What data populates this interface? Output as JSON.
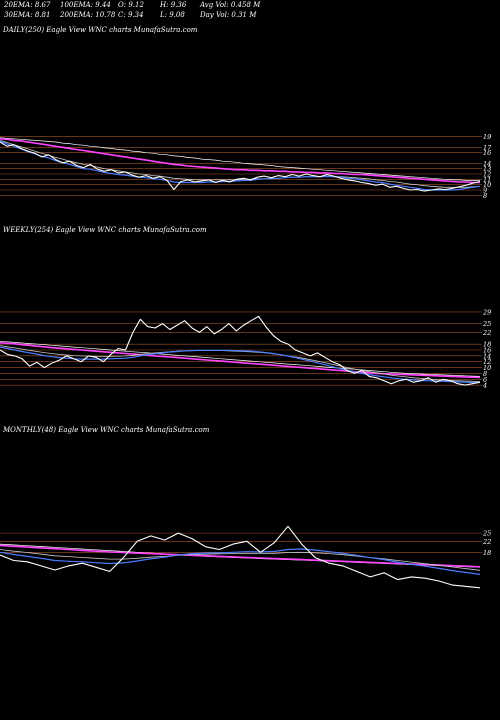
{
  "header": {
    "row1": [
      {
        "key": "ema20",
        "text": "20EMA: 8.67"
      },
      {
        "key": "ema100",
        "text": "100EMA: 9.44"
      },
      {
        "key": "open",
        "text": "O: 9.12"
      },
      {
        "key": "high",
        "text": "H: 9.36"
      },
      {
        "key": "avgvol",
        "text": "Avg Vol: 0.458 M"
      }
    ],
    "row2": [
      {
        "key": "ema30",
        "text": "30EMA: 8.81"
      },
      {
        "key": "ema200",
        "text": "200EMA: 10.78"
      },
      {
        "key": "close",
        "text": "C: 9.34"
      },
      {
        "key": "low",
        "text": "L: 9.08"
      },
      {
        "key": "dayvol",
        "text": "Day Vol: 0.31 M"
      }
    ]
  },
  "panels": {
    "daily": {
      "label": "DAILY(250) Eagle   View  WNC charts MunafaSutra.com"
    },
    "weekly": {
      "label": "WEEKLY(254) Eagle   View  WNC charts MunafaSutra.com"
    },
    "monthly": {
      "label": "MONTHLY(48) Eagle   View  WNC charts MunafaSutra.com"
    }
  },
  "colors": {
    "background": "#000000",
    "price": "#ffffff",
    "ema20": "#4a7bff",
    "ema30": "#c8c8c8",
    "ema100": "#ff44ff",
    "ema200": "#ffffff",
    "grid": "#a0522d",
    "text": "#ffffff"
  },
  "chart_data": [
    {
      "type": "line",
      "id": "daily",
      "title": "DAILY(250) Eagle   View  WNC charts MunafaSutra.com",
      "ylim": [
        6,
        19.5
      ],
      "y_ticks": [
        19,
        17,
        16,
        14,
        13,
        12,
        11,
        10,
        9,
        8
      ],
      "y_tick_labels": [
        "19",
        "17",
        "16",
        "14",
        "13",
        "12",
        "11",
        "10",
        "9",
        "8"
      ],
      "series": [
        {
          "key": "price",
          "values": [
            18.0,
            17.2,
            17.5,
            16.8,
            16.3,
            15.9,
            15.2,
            15.6,
            14.7,
            14.1,
            14.4,
            13.6,
            13.2,
            13.8,
            12.9,
            12.5,
            12.8,
            12.2,
            12.4,
            11.8,
            11.4,
            11.7,
            11.2,
            11.5,
            10.8,
            9.1,
            10.6,
            10.9,
            10.5,
            10.7,
            10.9,
            10.4,
            10.8,
            10.5,
            11.0,
            11.2,
            10.9,
            11.4,
            11.6,
            11.3,
            11.7,
            11.5,
            11.9,
            11.6,
            12.0,
            11.7,
            11.5,
            11.9,
            11.6,
            11.2,
            10.9,
            10.7,
            10.4,
            10.2,
            9.9,
            10.1,
            9.5,
            9.7,
            9.3,
            9.0,
            9.1,
            8.8,
            9.0,
            9.2,
            9.1,
            9.3,
            9.6,
            9.9,
            10.3,
            10.6
          ]
        },
        {
          "key": "ema20",
          "values": [
            18.2,
            17.6,
            17.2,
            16.7,
            16.2,
            15.8,
            15.3,
            15.0,
            14.5,
            14.1,
            13.8,
            13.4,
            13.0,
            12.9,
            12.6,
            12.3,
            12.1,
            11.9,
            11.8,
            11.6,
            11.4,
            11.3,
            11.1,
            11.0,
            10.8,
            10.5,
            10.4,
            10.4,
            10.4,
            10.4,
            10.5,
            10.5,
            10.6,
            10.6,
            10.7,
            10.8,
            10.8,
            11.0,
            11.1,
            11.1,
            11.2,
            11.3,
            11.4,
            11.4,
            11.5,
            11.5,
            11.5,
            11.6,
            11.5,
            11.4,
            11.2,
            11.1,
            10.9,
            10.7,
            10.5,
            10.4,
            10.1,
            9.9,
            9.7,
            9.5,
            9.3,
            9.1,
            9.0,
            9.0,
            9.0,
            9.0,
            9.1,
            9.3,
            9.5,
            9.7
          ]
        },
        {
          "key": "ema30",
          "values": [
            18.3,
            17.9,
            17.5,
            17.1,
            16.7,
            16.3,
            15.9,
            15.5,
            15.1,
            14.8,
            14.4,
            14.1,
            13.8,
            13.6,
            13.3,
            13.0,
            12.8,
            12.6,
            12.4,
            12.2,
            12.0,
            11.9,
            11.7,
            11.6,
            11.4,
            11.2,
            11.1,
            11.0,
            10.9,
            10.9,
            10.9,
            10.9,
            10.9,
            10.9,
            10.9,
            11.0,
            11.0,
            11.1,
            11.1,
            11.2,
            11.2,
            11.3,
            11.4,
            11.4,
            11.5,
            11.5,
            11.5,
            11.5,
            11.5,
            11.5,
            11.4,
            11.3,
            11.2,
            11.1,
            10.9,
            10.8,
            10.6,
            10.5,
            10.3,
            10.1,
            10.0,
            9.8,
            9.7,
            9.6,
            9.5,
            9.5,
            9.5,
            9.5,
            9.6,
            9.7
          ]
        },
        {
          "key": "ema100",
          "values": [
            18.6,
            18.5,
            18.3,
            18.2,
            18.0,
            17.8,
            17.6,
            17.4,
            17.2,
            17.0,
            16.8,
            16.6,
            16.4,
            16.2,
            16.0,
            15.8,
            15.6,
            15.4,
            15.2,
            15.0,
            14.8,
            14.6,
            14.4,
            14.2,
            14.0,
            13.8,
            13.7,
            13.5,
            13.4,
            13.3,
            13.2,
            13.1,
            13.0,
            12.9,
            12.8,
            12.8,
            12.7,
            12.7,
            12.6,
            12.6,
            12.5,
            12.5,
            12.4,
            12.4,
            12.3,
            12.3,
            12.2,
            12.2,
            12.1,
            12.1,
            12.0,
            11.9,
            11.9,
            11.8,
            11.7,
            11.6,
            11.5,
            11.4,
            11.3,
            11.2,
            11.1,
            11.0,
            10.9,
            10.8,
            10.7,
            10.6,
            10.5,
            10.5,
            10.4,
            10.4
          ]
        },
        {
          "key": "ema200",
          "values": [
            18.8,
            18.7,
            18.6,
            18.5,
            18.4,
            18.3,
            18.2,
            18.1,
            18.0,
            17.8,
            17.7,
            17.5,
            17.4,
            17.2,
            17.1,
            16.9,
            16.8,
            16.6,
            16.5,
            16.3,
            16.2,
            16.0,
            15.9,
            15.7,
            15.6,
            15.4,
            15.3,
            15.1,
            15.0,
            14.8,
            14.7,
            14.6,
            14.4,
            14.3,
            14.2,
            14.0,
            13.9,
            13.8,
            13.7,
            13.6,
            13.4,
            13.3,
            13.2,
            13.1,
            13.0,
            12.9,
            12.8,
            12.7,
            12.6,
            12.5,
            12.4,
            12.3,
            12.2,
            12.1,
            12.0,
            11.9,
            11.8,
            11.7,
            11.6,
            11.5,
            11.4,
            11.3,
            11.2,
            11.1,
            11.0,
            10.9,
            10.9,
            10.8,
            10.8,
            10.8
          ]
        }
      ]
    },
    {
      "type": "line",
      "id": "weekly",
      "title": "WEEKLY(254) Eagle   View  WNC charts MunafaSutra.com",
      "ylim": [
        2,
        30
      ],
      "y_ticks": [
        29,
        25,
        22,
        18,
        16,
        14,
        12,
        10,
        8,
        6,
        4
      ],
      "y_tick_labels": [
        "29",
        "25",
        "22",
        "18",
        "16",
        "14",
        "12",
        "10",
        "8",
        "6",
        "4"
      ],
      "series": [
        {
          "key": "price",
          "values": [
            16.0,
            14.5,
            14.0,
            13.0,
            10.5,
            11.8,
            10.0,
            11.5,
            12.5,
            14.0,
            13.0,
            12.0,
            14.0,
            13.5,
            12.0,
            14.5,
            16.5,
            16.0,
            22.0,
            26.5,
            24.0,
            23.5,
            25.0,
            23.0,
            24.5,
            26.0,
            23.5,
            22.0,
            24.0,
            21.5,
            23.0,
            25.0,
            22.5,
            24.5,
            26.0,
            27.5,
            24.0,
            21.0,
            19.0,
            18.0,
            16.0,
            15.0,
            14.0,
            15.0,
            13.5,
            12.0,
            11.0,
            9.0,
            8.0,
            9.0,
            7.0,
            6.5,
            5.5,
            4.5,
            5.5,
            6.0,
            5.0,
            5.5,
            6.5,
            5.0,
            6.0,
            5.5,
            4.5,
            4.0,
            4.5,
            5.0
          ]
        },
        {
          "key": "ema20",
          "values": [
            17.0,
            16.5,
            16.0,
            15.5,
            15.0,
            14.6,
            14.1,
            13.7,
            13.4,
            13.2,
            13.0,
            12.9,
            12.9,
            12.9,
            12.9,
            13.0,
            13.1,
            13.2,
            13.5,
            14.0,
            14.4,
            14.7,
            15.0,
            15.3,
            15.5,
            15.7,
            15.8,
            15.9,
            15.9,
            15.9,
            15.9,
            15.9,
            15.8,
            15.7,
            15.6,
            15.4,
            15.1,
            14.8,
            14.4,
            13.9,
            13.4,
            12.8,
            12.2,
            11.6,
            11.0,
            10.3,
            9.7,
            9.1,
            8.5,
            8.0,
            7.6,
            7.2,
            6.8,
            6.5,
            6.2,
            6.0,
            5.8,
            5.6,
            5.5,
            5.4,
            5.3,
            5.2,
            5.1,
            5.0,
            4.9,
            4.9
          ]
        },
        {
          "key": "ema30",
          "values": [
            17.5,
            17.1,
            16.7,
            16.3,
            15.9,
            15.5,
            15.1,
            14.8,
            14.5,
            14.3,
            14.1,
            14.0,
            13.9,
            13.8,
            13.8,
            13.8,
            13.9,
            14.0,
            14.2,
            14.5,
            14.8,
            15.0,
            15.2,
            15.4,
            15.6,
            15.7,
            15.8,
            15.8,
            15.8,
            15.8,
            15.8,
            15.7,
            15.6,
            15.5,
            15.4,
            15.2,
            15.0,
            14.7,
            14.4,
            14.0,
            13.6,
            13.2,
            12.7,
            12.2,
            11.7,
            11.1,
            10.6,
            10.0,
            9.5,
            9.0,
            8.6,
            8.2,
            7.8,
            7.4,
            7.1,
            6.8,
            6.5,
            6.3,
            6.1,
            5.9,
            5.7,
            5.6,
            5.5,
            5.4,
            5.3,
            5.2
          ]
        },
        {
          "key": "ema100",
          "values": [
            18.5,
            18.3,
            18.1,
            17.8,
            17.6,
            17.3,
            17.1,
            16.8,
            16.6,
            16.4,
            16.2,
            16.0,
            15.8,
            15.6,
            15.4,
            15.2,
            15.0,
            14.8,
            14.6,
            14.4,
            14.2,
            14.0,
            13.8,
            13.6,
            13.4,
            13.2,
            13.0,
            12.8,
            12.6,
            12.4,
            12.2,
            12.0,
            11.8,
            11.6,
            11.4,
            11.2,
            11.0,
            10.8,
            10.6,
            10.4,
            10.2,
            10.0,
            9.8,
            9.6,
            9.4,
            9.2,
            9.0,
            8.8,
            8.6,
            8.4,
            8.2,
            8.0,
            7.9,
            7.8,
            7.7,
            7.6,
            7.5,
            7.4,
            7.3,
            7.2,
            7.1,
            7.0,
            6.9,
            6.8,
            6.7,
            6.6
          ]
        },
        {
          "key": "ema200",
          "values": [
            19.0,
            18.8,
            18.6,
            18.4,
            18.2,
            18.0,
            17.8,
            17.6,
            17.4,
            17.2,
            17.0,
            16.8,
            16.6,
            16.4,
            16.2,
            16.0,
            15.8,
            15.6,
            15.4,
            15.2,
            15.0,
            14.8,
            14.6,
            14.4,
            14.2,
            14.0,
            13.8,
            13.6,
            13.4,
            13.2,
            13.0,
            12.8,
            12.6,
            12.4,
            12.2,
            12.0,
            11.8,
            11.6,
            11.4,
            11.2,
            11.0,
            10.8,
            10.6,
            10.4,
            10.2,
            10.0,
            9.8,
            9.6,
            9.4,
            9.2,
            9.0,
            8.8,
            8.6,
            8.4,
            8.2,
            8.0,
            7.9,
            7.8,
            7.7,
            7.6,
            7.5,
            7.4,
            7.3,
            7.2,
            7.1,
            7.0
          ]
        }
      ]
    },
    {
      "type": "line",
      "id": "monthly",
      "title": "MONTHLY(48) Eagle   View  WNC charts MunafaSutra.com",
      "ylim": [
        2,
        32
      ],
      "y_ticks": [
        25,
        22,
        18
      ],
      "y_tick_labels": [
        "25",
        "22",
        "18"
      ],
      "series": [
        {
          "key": "price",
          "values": [
            17.0,
            15.0,
            14.5,
            13.0,
            11.5,
            13.0,
            14.0,
            12.5,
            11.0,
            16.0,
            22.0,
            24.0,
            22.5,
            25.0,
            23.0,
            20.0,
            19.0,
            21.0,
            22.0,
            18.0,
            21.5,
            27.5,
            21.0,
            16.0,
            14.0,
            13.0,
            11.0,
            9.0,
            10.5,
            8.0,
            9.0,
            8.5,
            7.5,
            6.0,
            5.5,
            5.0
          ]
        },
        {
          "key": "ema20",
          "values": [
            18.0,
            17.2,
            16.5,
            15.8,
            15.0,
            14.7,
            14.5,
            14.2,
            13.9,
            14.1,
            14.8,
            15.6,
            16.2,
            17.0,
            17.5,
            17.7,
            17.8,
            18.0,
            18.2,
            18.1,
            18.3,
            19.0,
            19.2,
            18.8,
            18.2,
            17.6,
            16.9,
            16.0,
            15.3,
            14.4,
            13.6,
            12.9,
            12.1,
            11.3,
            10.6,
            9.9
          ]
        },
        {
          "key": "ema30",
          "values": [
            19.0,
            18.4,
            17.9,
            17.3,
            16.7,
            16.4,
            16.1,
            15.8,
            15.5,
            15.5,
            15.8,
            16.2,
            16.5,
            16.9,
            17.2,
            17.3,
            17.4,
            17.5,
            17.6,
            17.6,
            17.6,
            17.9,
            18.0,
            17.8,
            17.5,
            17.1,
            16.6,
            16.1,
            15.6,
            15.0,
            14.4,
            13.8,
            13.2,
            12.6,
            12.0,
            11.4
          ]
        },
        {
          "key": "ema100",
          "values": [
            20.5,
            20.2,
            19.9,
            19.6,
            19.3,
            19.0,
            18.7,
            18.4,
            18.1,
            17.9,
            17.7,
            17.5,
            17.3,
            17.1,
            16.9,
            16.7,
            16.5,
            16.3,
            16.1,
            15.9,
            15.7,
            15.5,
            15.3,
            15.1,
            14.9,
            14.7,
            14.5,
            14.3,
            14.1,
            13.9,
            13.7,
            13.5,
            13.3,
            13.1,
            12.9,
            12.7
          ]
        },
        {
          "key": "ema200",
          "values": [
            21.0,
            20.7,
            20.4,
            20.1,
            19.8,
            19.5,
            19.2,
            18.9,
            18.6,
            18.3,
            18.0,
            17.7,
            17.4,
            17.1,
            16.8,
            16.5,
            16.3,
            16.1,
            15.9,
            15.7,
            15.5,
            15.3,
            15.1,
            14.9,
            14.7,
            14.5,
            14.3,
            14.1,
            13.9,
            13.7,
            13.5,
            13.3,
            13.1,
            12.9,
            12.7,
            12.5
          ]
        }
      ]
    }
  ]
}
